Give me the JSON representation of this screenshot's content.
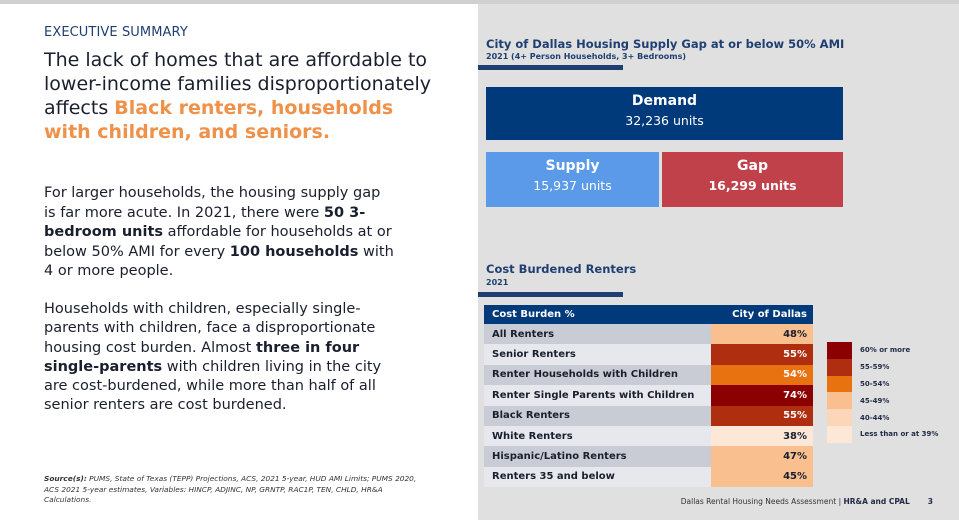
{
  "left": {
    "eyebrow": "EXECUTIVE SUMMARY",
    "headline": {
      "plain": "The lack of homes that are affordable to lower-income families disproportionately affects ",
      "highlight": "Black renters, households with children, and seniors."
    },
    "paragraph1": {
      "t1": "For larger households, the housing supply gap is far more acute. In 2021, there were ",
      "b1": "50 3-bedroom units",
      "t2": " affordable for households at or below 50% AMI for every ",
      "b2": "100 households",
      "t3": " with 4 or more people."
    },
    "paragraph2": {
      "t1": "Households with children, especially single-parents with children, face a disproportionate housing cost burden. Almost ",
      "b1": "three in four single-parents",
      "t2": " with children living in the city are cost-burdened, while more than half of all senior renters are cost burdened."
    },
    "source": {
      "label": "Source(s):",
      "text": " PUMS, State of Texas (TEPP) Projections, ACS, 2021 5-year, HUD AMI Limits; PUMS 2020, ACS 2021 5-year estimates, Variables: HINCP, ADJINC, NP, GRNTP, RAC1P, TEN, CHLD, HR&A Calculations."
    }
  },
  "supply_gap": {
    "title": "City of Dallas Housing Supply Gap at or below 50% AMI",
    "subtitle": "2021 (4+ Person Households, 3+ Bedrooms)",
    "demand": {
      "label": "Demand",
      "value": "32,236 units"
    },
    "supply": {
      "label": "Supply",
      "value": "15,937 units"
    },
    "gap": {
      "label": "Gap",
      "value": "16,299 units"
    },
    "colors": {
      "demand": "#003a7a",
      "supply": "#5a9ae8",
      "gap": "#c0414a"
    }
  },
  "cost_burden": {
    "title": "Cost Burdened Renters",
    "subtitle": "2021",
    "headers": [
      "Cost Burden %",
      "City of Dallas"
    ],
    "rows": [
      {
        "label": "All Renters",
        "value": "48%",
        "color": "#f9bf8f",
        "text_color": "#1a1f2e"
      },
      {
        "label": "Senior Renters",
        "value": "55%",
        "color": "#b02e10",
        "text_color": "#ffffff"
      },
      {
        "label": "Renter Households with Children",
        "value": "54%",
        "color": "#e8720f",
        "text_color": "#ffffff"
      },
      {
        "label": "Renter Single Parents with Children",
        "value": "74%",
        "color": "#8b0000",
        "text_color": "#ffffff"
      },
      {
        "label": "Black Renters",
        "value": "55%",
        "color": "#b02e10",
        "text_color": "#ffffff"
      },
      {
        "label": "White Renters",
        "value": "38%",
        "color": "#fde8d8",
        "text_color": "#1a1f2e"
      },
      {
        "label": "Hispanic/Latino Renters",
        "value": "47%",
        "color": "#f9bf8f",
        "text_color": "#1a1f2e"
      },
      {
        "label": "Renters 35 and below",
        "value": "45%",
        "color": "#f9bf8f",
        "text_color": "#1a1f2e"
      }
    ],
    "legend": [
      {
        "label": "60% or more",
        "color": "#8b0000"
      },
      {
        "label": "55-59%",
        "color": "#b02e10"
      },
      {
        "label": "50-54%",
        "color": "#e8720f"
      },
      {
        "label": "45-49%",
        "color": "#f9bf8f"
      },
      {
        "label": "40-44%",
        "color": "#fcd6b8"
      },
      {
        "label": "Less than or at 39%",
        "color": "#fde8d8"
      }
    ]
  },
  "footer": {
    "report": "Dallas Rental Housing Needs Assessment",
    "separator": " | ",
    "authors": "HR&A and CPAL",
    "page": "3"
  }
}
